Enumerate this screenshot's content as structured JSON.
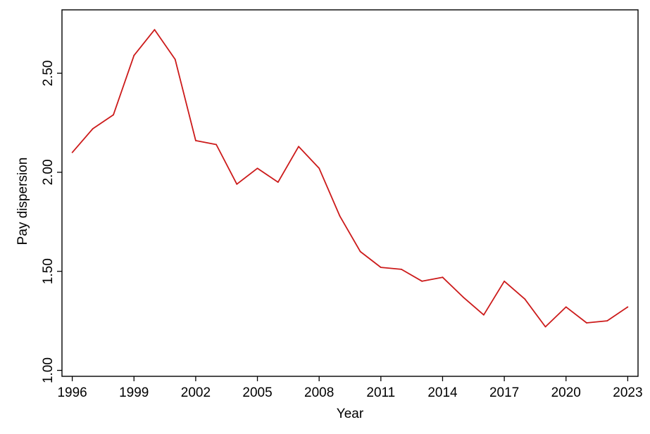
{
  "chart_data": {
    "type": "line",
    "title": "",
    "xlabel": "Year",
    "ylabel": "Pay dispersion",
    "xlim": [
      1995.5,
      2023.5
    ],
    "ylim": [
      0.97,
      2.82
    ],
    "x_ticks": [
      1996,
      1999,
      2002,
      2005,
      2008,
      2011,
      2014,
      2017,
      2020,
      2023
    ],
    "x_tick_labels": [
      "1996",
      "1999",
      "2002",
      "2005",
      "2008",
      "2011",
      "2014",
      "2017",
      "2020",
      "2023"
    ],
    "y_ticks": [
      1.0,
      1.5,
      2.0,
      2.5
    ],
    "y_tick_labels": [
      "1.00",
      "1.50",
      "2.00",
      "2.50"
    ],
    "grid": false,
    "legend": "none",
    "line_color": "#cc1a1a",
    "series": [
      {
        "x": [
          1996,
          1997,
          1998,
          1999,
          2000,
          2001,
          2002,
          2003,
          2004,
          2005,
          2006,
          2007,
          2008,
          2009,
          2010,
          2011,
          2012,
          2013,
          2014,
          2015,
          2016,
          2017,
          2018,
          2019,
          2020,
          2021,
          2022,
          2023
        ],
        "values": [
          2.1,
          2.22,
          2.29,
          2.59,
          2.72,
          2.57,
          2.16,
          2.14,
          1.94,
          2.02,
          1.95,
          2.13,
          2.02,
          1.78,
          1.6,
          1.52,
          1.51,
          1.45,
          1.47,
          1.37,
          1.28,
          1.45,
          1.36,
          1.22,
          1.32,
          1.24,
          1.25,
          1.32
        ]
      }
    ]
  }
}
